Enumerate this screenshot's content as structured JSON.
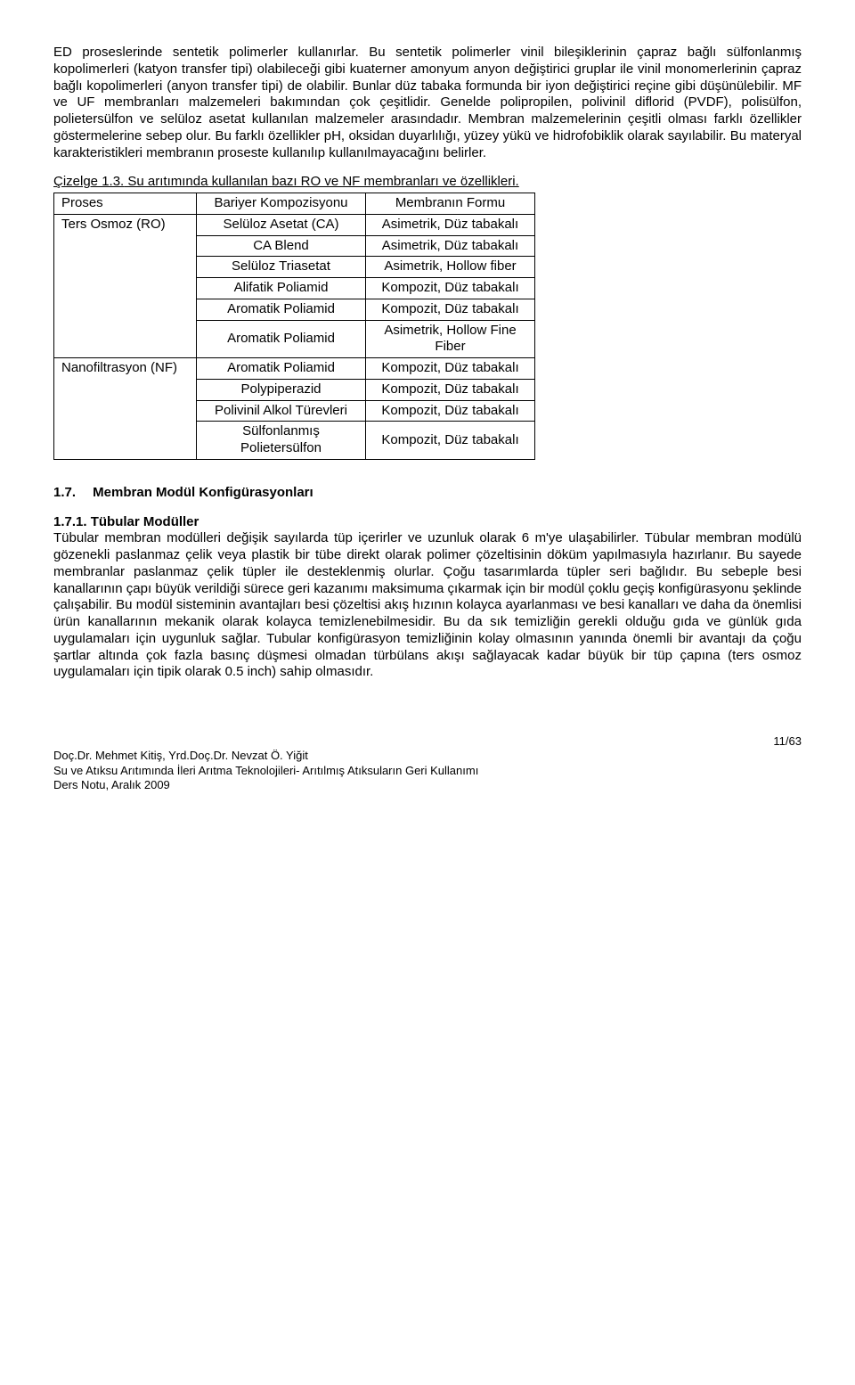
{
  "para1": "ED proseslerinde sentetik polimerler kullanırlar. Bu sentetik polimerler vinil bileşiklerinin çapraz bağlı sülfonlanmış kopolimerleri (katyon transfer tipi) olabileceği gibi kuaterner amonyum anyon değiştirici gruplar ile vinil monomerlerinin çapraz bağlı kopolimerleri (anyon transfer tipi) de olabilir. Bunlar düz tabaka formunda bir iyon değiştirici reçine gibi düşünülebilir. MF ve UF membranları malzemeleri bakımından çok çeşitlidir. Genelde polipropilen, polivinil diflorid (PVDF), polisülfon, polietersülfon ve selüloz asetat kullanılan malzemeler arasındadır. Membran malzemelerinin çeşitli olması farklı özellikler göstermelerine sebep olur. Bu farklı özellikler pH, oksidan duyarlılığı, yüzey yükü ve hidrofobiklik olarak sayılabilir. Bu materyal karakteristikleri membranın proseste kullanılıp kullanılmayacağını belirler.",
  "table_title_label": "Çizelge 1.3.",
  "table_title_text": " Su arıtımında kullanılan bazı RO ve NF membranları ve özellikleri.",
  "table": {
    "col_widths": [
      "160px",
      "190px",
      "190px"
    ],
    "header": [
      "Proses",
      "Bariyer Kompozisyonu",
      "Membranın Formu"
    ],
    "proc1": "Ters Osmoz (RO)",
    "proc2": "Nanofiltrasyon (NF)",
    "rows": [
      [
        "Selüloz Asetat (CA)",
        "Asimetrik, Düz tabakalı"
      ],
      [
        "CA Blend",
        "Asimetrik, Düz tabakalı"
      ],
      [
        "Selüloz Triasetat",
        "Asimetrik, Hollow fiber"
      ],
      [
        "Alifatik Poliamid",
        "Kompozit, Düz tabakalı"
      ],
      [
        "Aromatik Poliamid",
        "Kompozit, Düz tabakalı"
      ],
      [
        "Aromatik Poliamid",
        "Asimetrik, Hollow Fine Fiber"
      ],
      [
        "Aromatik Poliamid",
        "Kompozit, Düz tabakalı"
      ],
      [
        "Polypiperazid",
        "Kompozit, Düz tabakalı"
      ],
      [
        "Polivinil Alkol Türevleri",
        "Kompozit, Düz tabakalı"
      ],
      [
        "Sülfonlanmış Polietersülfon",
        "Kompozit, Düz tabakalı"
      ]
    ]
  },
  "section_num": "1.7.",
  "section_title": "Membran Modül Konfigürasyonları",
  "subsection_num": "1.7.1.",
  "subsection_title": "Tübular Modüller",
  "para2": "Tübular membran modülleri değişik sayılarda tüp içerirler ve uzunluk olarak 6 m'ye ulaşabilirler. Tübular membran modülü gözenekli paslanmaz çelik veya plastik bir tübe direkt olarak polimer çözeltisinin döküm yapılmasıyla hazırlanır. Bu sayede membranlar paslanmaz çelik tüpler ile desteklenmiş olurlar. Çoğu tasarımlarda tüpler seri bağlıdır. Bu sebeple besi kanallarının çapı büyük verildiği sürece geri kazanımı maksimuma çıkarmak için bir modül çoklu geçiş konfigürasyonu şeklinde çalışabilir. Bu modül sisteminin avantajları besi çözeltisi akış hızının kolayca ayarlanması ve besi kanalları ve daha da önemlisi ürün kanallarının mekanik olarak kolayca temizlenebilmesidir. Bu da sık temizliğin gerekli olduğu gıda ve günlük gıda uygulamaları için uygunluk sağlar. Tubular konfigürasyon temizliğinin kolay olmasının yanında önemli bir avantajı da çoğu şartlar altında çok fazla basınç düşmesi olmadan türbülans akışı sağlayacak kadar büyük bir tüp çapına (ters osmoz uygulamaları için tipik olarak 0.5 inch) sahip olmasıdır.",
  "footer": {
    "page": "11/63",
    "line1": "Doç.Dr. Mehmet Kitiş, Yrd.Doç.Dr. Nevzat Ö. Yiğit",
    "line2": "Su ve Atıksu Arıtımında İleri Arıtma Teknolojileri- Arıtılmış Atıksuların Geri Kullanımı",
    "line3": "Ders Notu, Aralık 2009"
  }
}
